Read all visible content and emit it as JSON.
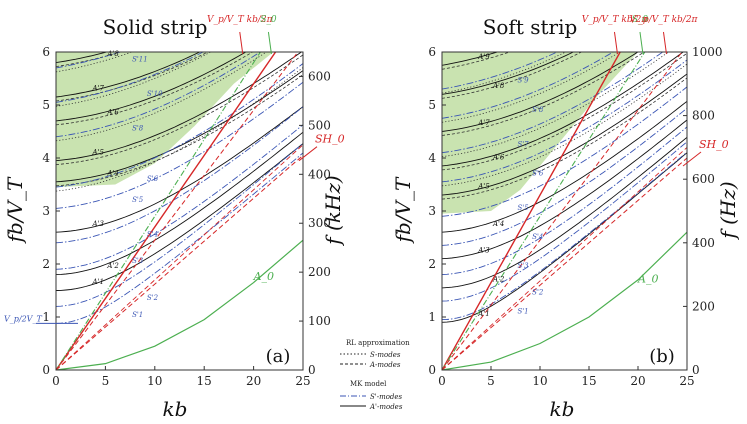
{
  "chart_data": [
    {
      "type": "line",
      "panel_label": "(a)",
      "title": "Solid strip",
      "xlabel": "kb",
      "ylabel": "fb/V_T",
      "ylabel_right": "f (kHz)",
      "xlim": [
        0,
        25
      ],
      "ylim": [
        0,
        6
      ],
      "xticks": [
        0,
        5,
        10,
        15,
        20,
        25
      ],
      "yticks": [
        0,
        1,
        2,
        3,
        4,
        5,
        6
      ],
      "right_ylim": [
        0,
        650
      ],
      "right_yticks": [
        0,
        100,
        200,
        300,
        400,
        500,
        600
      ],
      "shaded_region": {
        "kb": [
          0,
          6,
          10,
          14,
          18,
          22
        ],
        "fb_vt": [
          3.45,
          3.5,
          3.9,
          4.6,
          5.4,
          6.0
        ],
        "color": "#c9e3b0"
      },
      "annotations_top": [
        {
          "text": "V_p/V_T kb/2π",
          "kb": 18.6
        },
        {
          "text": "S_0",
          "kb": 21.5
        }
      ],
      "annotations_right": [
        {
          "text": "SH_0",
          "value": 4.1
        }
      ],
      "a0_label": {
        "text": "A_0",
        "kb": 20,
        "value": 1.7
      },
      "vp_marker": {
        "text": "V_p/2V_T",
        "value": 0.88
      },
      "series": [
        {
          "name": "A-modes (MK model)",
          "style": "solid",
          "color": "#111111",
          "cutoffs": [
            1.5,
            1.8,
            2.6,
            3.55,
            3.95,
            4.7,
            5.15,
            5.8
          ],
          "labels": [
            "A'1",
            "A'2",
            "A'3",
            "A'4",
            "A'5",
            "A'6",
            "A'7",
            "A'8"
          ]
        },
        {
          "name": "S-modes (MK model)",
          "style": "dashdot",
          "color": "#3b56b5",
          "cutoffs": [
            0.88,
            1.2,
            1.9,
            2.4,
            3.05,
            3.45,
            4.4,
            5.05,
            5.7
          ],
          "labels": [
            "S'1",
            "S'2",
            "S'3",
            "S'4",
            "S'5",
            "S'6",
            "S'8",
            "S'10",
            "S'11"
          ]
        },
        {
          "name": "A0",
          "style": "solid",
          "color": "#4caf50",
          "kb": [
            0,
            5,
            10,
            15,
            20,
            25
          ],
          "values": [
            0,
            0.12,
            0.45,
            0.95,
            1.65,
            2.45
          ]
        },
        {
          "name": "SH0",
          "style": "dashed",
          "color": "#d62728",
          "slope": 0.162
        },
        {
          "name": "Vp line",
          "style": "solid",
          "color": "#d62728",
          "slope": 0.27
        }
      ]
    },
    {
      "type": "line",
      "panel_label": "(b)",
      "title": "Soft strip",
      "xlabel": "kb",
      "ylabel": "fb/V_T",
      "ylabel_right": "f (Hz)",
      "xlim": [
        0,
        25
      ],
      "ylim": [
        0,
        6
      ],
      "xticks": [
        0,
        5,
        10,
        15,
        20,
        25
      ],
      "yticks": [
        0,
        1,
        2,
        3,
        4,
        5,
        6
      ],
      "right_ylim": [
        0,
        1000
      ],
      "right_yticks": [
        0,
        200,
        400,
        600,
        800,
        1000
      ],
      "shaded_region": {
        "kb": [
          0,
          5,
          8,
          12,
          16,
          20
        ],
        "fb_vt": [
          2.95,
          3.0,
          3.4,
          4.3,
          5.2,
          6.0
        ],
        "color": "#c9e3b0"
      },
      "annotations_top": [
        {
          "text": "V_p/V_T kb/2π",
          "kb": 17.6
        },
        {
          "text": "S_0",
          "kb": 20.2
        },
        {
          "text": "V'_p/V_T kb/2π",
          "kb": 22.6
        }
      ],
      "annotations_right": [
        {
          "text": "SH_0",
          "value": 4.0
        }
      ],
      "a0_label": {
        "text": "A_0",
        "kb": 20,
        "value": 1.65
      },
      "series": [
        {
          "name": "A-modes (MK model)",
          "style": "solid",
          "color": "#111111",
          "cutoffs": [
            0.9,
            1.55,
            2.1,
            2.6,
            3.3,
            3.85,
            4.5,
            5.2,
            5.75
          ],
          "labels": [
            "A'1",
            "A'2",
            "A'3",
            "A'4",
            "A'5",
            "A'6",
            "A'7",
            "A'8",
            "A'9"
          ]
        },
        {
          "name": "S-modes (MK model)",
          "style": "dashdot",
          "color": "#3b56b5",
          "cutoffs": [
            0.95,
            1.3,
            1.8,
            2.35,
            2.9,
            3.55,
            4.1,
            4.75,
            5.3
          ],
          "labels": [
            "S'1",
            "S'2",
            "S'3",
            "S'4",
            "S'5",
            "S'6",
            "S'7",
            "S'8",
            "S'9"
          ]
        },
        {
          "name": "A0",
          "style": "solid",
          "color": "#4caf50",
          "kb": [
            0,
            5,
            10,
            15,
            20,
            25
          ],
          "values": [
            0,
            0.15,
            0.5,
            1.0,
            1.7,
            2.6
          ]
        },
        {
          "name": "SH0",
          "style": "dashed",
          "color": "#d62728",
          "slope": 0.16
        },
        {
          "name": "Vp line",
          "style": "solid",
          "color": "#d62728",
          "slope": 0.33
        }
      ]
    }
  ],
  "legend": {
    "rl_title": "RL approximation",
    "rl_s": "S-modes",
    "rl_a": "A-modes",
    "mk_title": "MK model",
    "mk_s": "S'-modes",
    "mk_a": "A'-modes"
  },
  "colors": {
    "shade": "#c9e3b0",
    "red": "#d62728",
    "green": "#4caf50",
    "blue": "#3b56b5",
    "black": "#111111"
  }
}
